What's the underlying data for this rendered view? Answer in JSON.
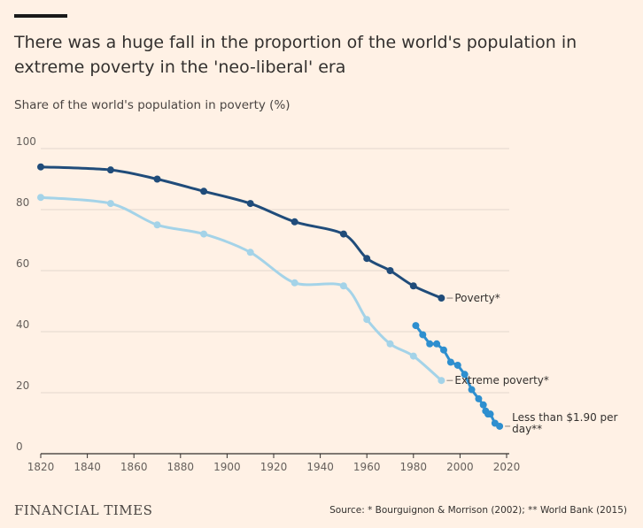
{
  "chart_data": {
    "type": "line",
    "title": "There was a huge fall in the proportion of the world's population in extreme poverty in the 'neo-liberal' era",
    "ylabel": "Share of the world's population in poverty (%)",
    "xlim": [
      1820,
      2020
    ],
    "ylim": [
      0,
      100
    ],
    "x_ticks": [
      1820,
      1840,
      1860,
      1880,
      1900,
      1920,
      1940,
      1960,
      1980,
      2000,
      2020
    ],
    "y_ticks": [
      0,
      20,
      40,
      60,
      80,
      100
    ],
    "grid": true,
    "legend": "none (direct labels)",
    "series": [
      {
        "name": "Poverty*",
        "color": "#204c7a",
        "points": [
          [
            1820,
            94
          ],
          [
            1850,
            93
          ],
          [
            1870,
            90
          ],
          [
            1890,
            86
          ],
          [
            1910,
            82
          ],
          [
            1929,
            76
          ],
          [
            1950,
            72
          ],
          [
            1960,
            64
          ],
          [
            1970,
            60
          ],
          [
            1980,
            55
          ],
          [
            1992,
            51
          ]
        ]
      },
      {
        "name": "Extreme poverty*",
        "color": "#a4d3e8",
        "points": [
          [
            1820,
            84
          ],
          [
            1850,
            82
          ],
          [
            1870,
            75
          ],
          [
            1890,
            72
          ],
          [
            1910,
            66
          ],
          [
            1929,
            56
          ],
          [
            1950,
            55
          ],
          [
            1960,
            44
          ],
          [
            1970,
            36
          ],
          [
            1980,
            32
          ],
          [
            1992,
            24
          ]
        ]
      },
      {
        "name": "Less than $1.90 per day**",
        "label_lines": [
          "Less than $1.90 per",
          "day**"
        ],
        "color": "#2e8fcf",
        "points": [
          [
            1981,
            42
          ],
          [
            1984,
            39
          ],
          [
            1987,
            36
          ],
          [
            1990,
            36
          ],
          [
            1993,
            34
          ],
          [
            1996,
            30
          ],
          [
            1999,
            29
          ],
          [
            2002,
            26
          ],
          [
            2005,
            21
          ],
          [
            2008,
            18
          ],
          [
            2010,
            16
          ],
          [
            2011,
            14
          ],
          [
            2012,
            13
          ],
          [
            2013,
            13
          ],
          [
            2015,
            10
          ],
          [
            2017,
            9
          ]
        ]
      }
    ]
  },
  "footer": {
    "brand": "FINANCIAL TIMES",
    "source": "Source: * Bourguignon & Morrison (2002); ** World Bank (2015)"
  }
}
